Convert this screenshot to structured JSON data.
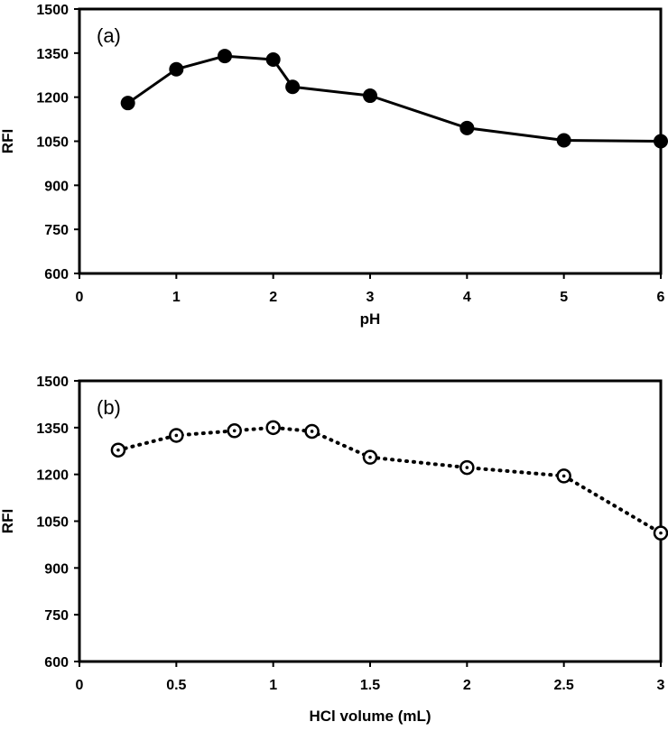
{
  "chart_data": [
    {
      "type": "line",
      "panel_label": "(a)",
      "xlabel": "pH",
      "ylabel": "RFI",
      "xlim": [
        0,
        6
      ],
      "ylim": [
        600,
        1500
      ],
      "xticks": [
        "0",
        "1",
        "2",
        "3",
        "4",
        "5",
        "6"
      ],
      "yticks": [
        "600",
        "750",
        "900",
        "1050",
        "1200",
        "1350",
        "1500"
      ],
      "grid": false,
      "marker": "filled-circle",
      "line_style": "solid",
      "series": [
        {
          "x": [
            0.5,
            1,
            1.5,
            2,
            2.2,
            3,
            4,
            5,
            6
          ],
          "values": [
            1180,
            1295,
            1340,
            1328,
            1235,
            1205,
            1095,
            1053,
            1050
          ]
        }
      ]
    },
    {
      "type": "line",
      "panel_label": "(b)",
      "xlabel": "HCl volume (mL)",
      "ylabel": "RFI",
      "xlim": [
        0,
        3
      ],
      "ylim": [
        600,
        1500
      ],
      "xticks": [
        "0",
        "0.5",
        "1",
        "1.5",
        "2",
        "2.5",
        "3"
      ],
      "yticks": [
        "600",
        "750",
        "900",
        "1050",
        "1200",
        "1350",
        "1500"
      ],
      "grid": false,
      "marker": "open-circle-dot",
      "line_style": "dotted",
      "series": [
        {
          "x": [
            0.2,
            0.5,
            0.8,
            1,
            1.2,
            1.5,
            2,
            2.5,
            3
          ],
          "values": [
            1278,
            1325,
            1340,
            1350,
            1338,
            1255,
            1222,
            1195,
            1012
          ]
        }
      ]
    }
  ]
}
